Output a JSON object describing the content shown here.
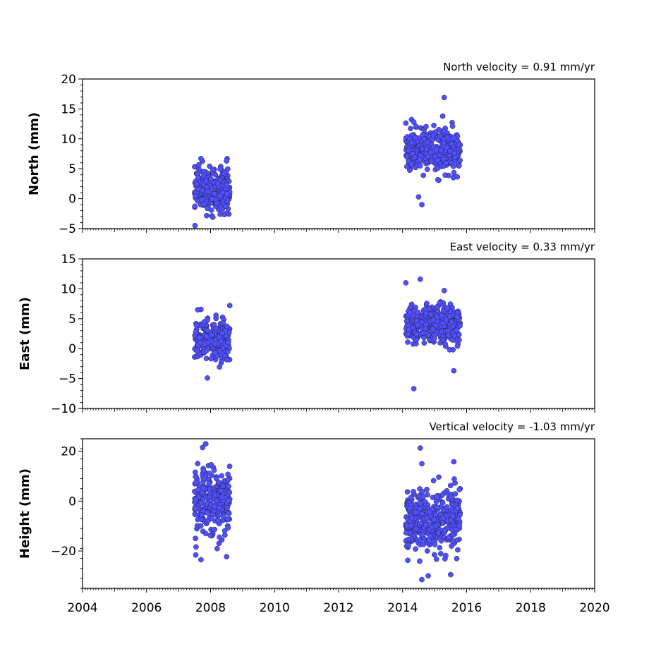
{
  "chart_data": [
    {
      "type": "scatter",
      "title": "North velocity = 0.91 mm/yr",
      "ylabel": "North (mm)",
      "xlim": [
        2004,
        2020
      ],
      "ylim": [
        -5,
        20
      ],
      "yticks": [
        -5,
        0,
        5,
        10,
        15,
        20
      ],
      "ytick_labels": [
        "−5",
        "0",
        "5",
        "10",
        "15",
        "20"
      ],
      "clusters": [
        {
          "x_range": [
            2007.5,
            2008.6
          ],
          "y_center": 1.5,
          "y_spread": 1.8,
          "n": 260
        },
        {
          "x_range": [
            2014.1,
            2015.8
          ],
          "y_center": 8.0,
          "y_spread": 1.7,
          "n": 380
        }
      ],
      "outliers": [
        {
          "x": 2015.3,
          "y": 16.9
        },
        {
          "x": 2015.25,
          "y": 13.8
        },
        {
          "x": 2014.35,
          "y": 12.8
        },
        {
          "x": 2014.6,
          "y": -1.0
        },
        {
          "x": 2014.5,
          "y": 0.3
        },
        {
          "x": 2007.7,
          "y": 6.7
        },
        {
          "x": 2008.5,
          "y": 6.3
        },
        {
          "x": 2008.3,
          "y": -2.6
        }
      ]
    },
    {
      "type": "scatter",
      "title": "East velocity = 0.33 mm/yr",
      "ylabel": "East (mm)",
      "xlim": [
        2004,
        2020
      ],
      "ylim": [
        -10,
        15
      ],
      "yticks": [
        -10,
        -5,
        0,
        5,
        10,
        15
      ],
      "ytick_labels": [
        "−10",
        "−5",
        "0",
        "5",
        "10",
        "15"
      ],
      "clusters": [
        {
          "x_range": [
            2007.5,
            2008.6
          ],
          "y_center": 1.5,
          "y_spread": 1.6,
          "n": 260
        },
        {
          "x_range": [
            2014.1,
            2015.8
          ],
          "y_center": 4.0,
          "y_spread": 1.6,
          "n": 380
        }
      ],
      "outliers": [
        {
          "x": 2014.35,
          "y": -6.7
        },
        {
          "x": 2014.1,
          "y": 11.0
        },
        {
          "x": 2014.55,
          "y": 11.6
        },
        {
          "x": 2015.3,
          "y": 9.7
        },
        {
          "x": 2007.9,
          "y": -4.9
        },
        {
          "x": 2008.6,
          "y": 7.2
        },
        {
          "x": 2007.6,
          "y": 6.5
        },
        {
          "x": 2015.6,
          "y": -3.7
        }
      ]
    },
    {
      "type": "scatter",
      "title": "Vertical velocity = -1.03 mm/yr",
      "ylabel": "Height (mm)",
      "xlim": [
        2004,
        2020
      ],
      "ylim": [
        -35,
        25
      ],
      "yticks": [
        -20,
        0,
        20
      ],
      "ytick_labels": [
        "−20",
        "0",
        "20"
      ],
      "clusters": [
        {
          "x_range": [
            2007.5,
            2008.6
          ],
          "y_center": 0.0,
          "y_spread": 6.5,
          "n": 260
        },
        {
          "x_range": [
            2014.1,
            2015.8
          ],
          "y_center": -8.0,
          "y_spread": 6.5,
          "n": 380
        }
      ],
      "outliers": [
        {
          "x": 2007.85,
          "y": 23.0
        },
        {
          "x": 2007.75,
          "y": 21.5
        },
        {
          "x": 2007.7,
          "y": -23.5
        },
        {
          "x": 2008.5,
          "y": -22.3
        },
        {
          "x": 2014.55,
          "y": 21.3
        },
        {
          "x": 2014.6,
          "y": 15.0
        },
        {
          "x": 2014.6,
          "y": -31.5
        },
        {
          "x": 2014.8,
          "y": -30.0
        },
        {
          "x": 2015.5,
          "y": -29.5
        },
        {
          "x": 2015.6,
          "y": 15.8
        }
      ]
    }
  ],
  "xaxis": {
    "ticks": [
      2004,
      2006,
      2008,
      2010,
      2012,
      2014,
      2016,
      2018,
      2020
    ],
    "tick_labels": [
      "2004",
      "2006",
      "2008",
      "2010",
      "2012",
      "2014",
      "2016",
      "2018",
      "2020"
    ]
  },
  "colors": {
    "marker_fill": "#5050ff",
    "marker_edge": "#202040"
  }
}
